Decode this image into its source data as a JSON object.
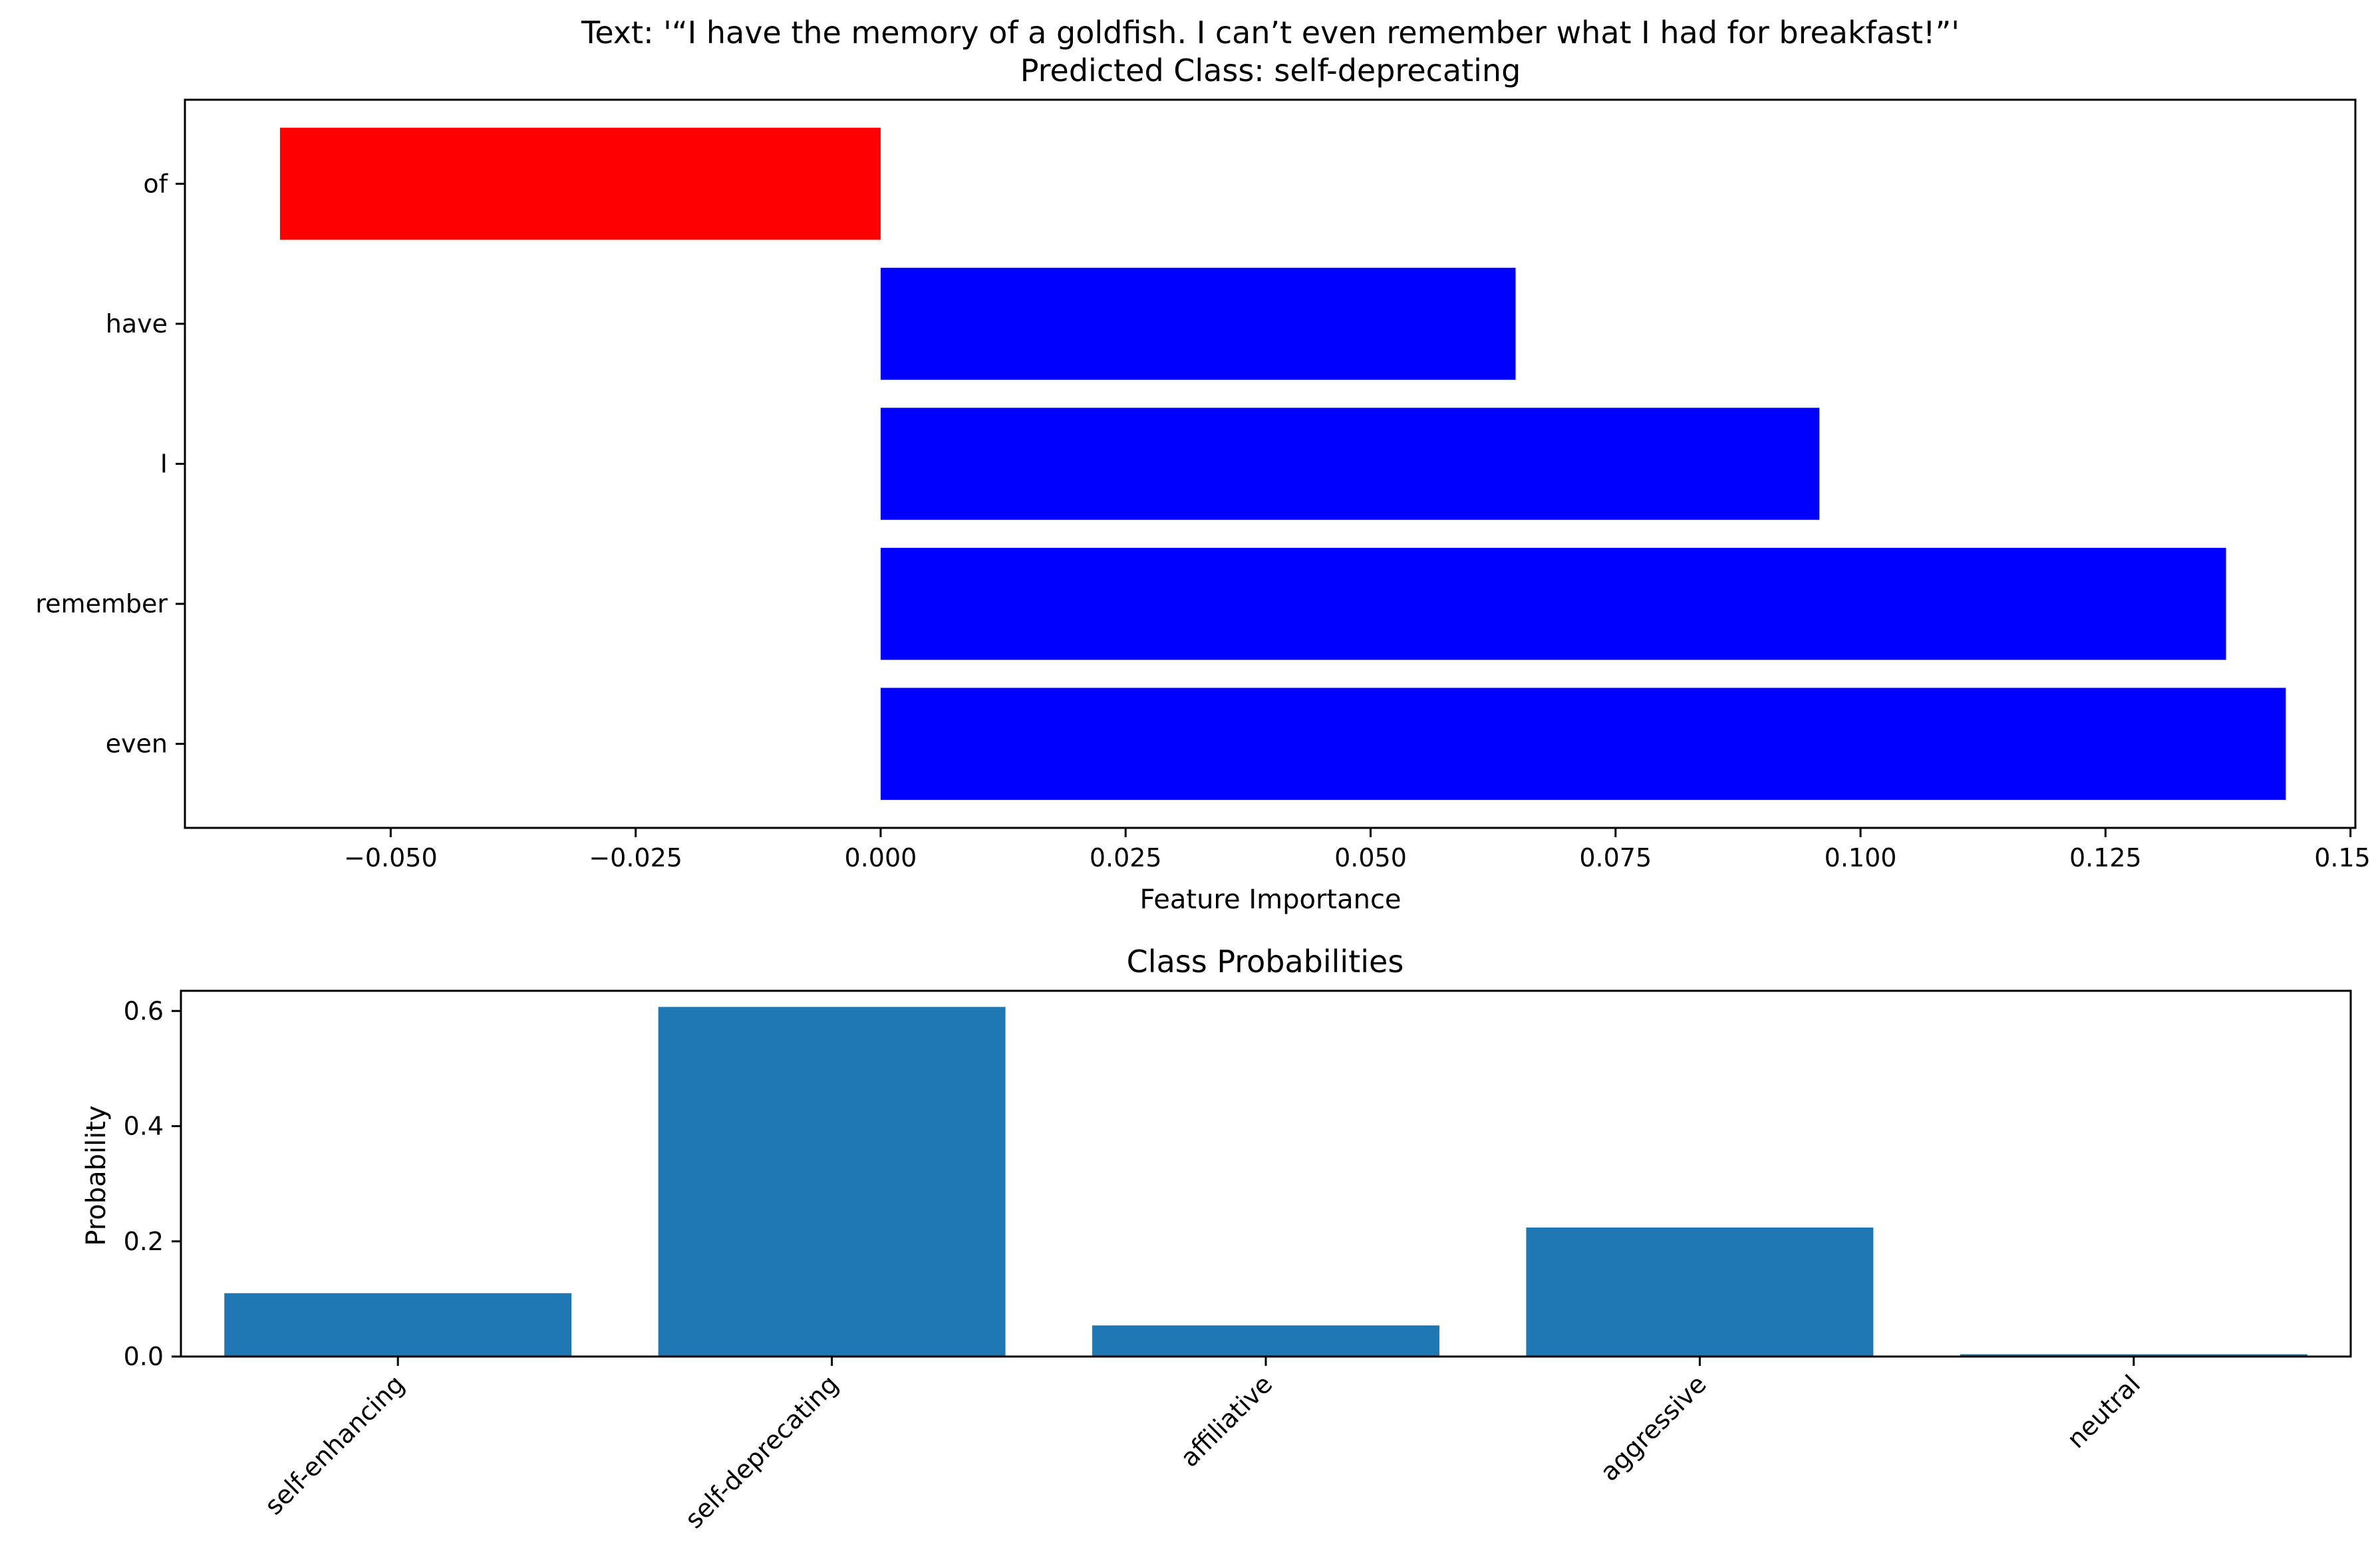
{
  "chart_data": [
    {
      "type": "bar",
      "orientation": "horizontal",
      "title_line1": "Text: '“I have the memory of a goldfish. I can’t even remember what I had for breakfast!”'",
      "title_line2": "Predicted Class: self-deprecating",
      "xlabel": "Feature Importance",
      "ylabel": "",
      "xlim": [
        -0.071,
        0.1505
      ],
      "xticks": [
        -0.05,
        -0.025,
        0.0,
        0.025,
        0.05,
        0.075,
        0.1,
        0.125,
        0.15
      ],
      "xtick_labels": [
        "−0.050",
        "−0.025",
        "0.000",
        "0.025",
        "0.050",
        "0.075",
        "0.100",
        "0.125",
        "0.150"
      ],
      "categories": [
        "of",
        "have",
        "I",
        "remember",
        "even"
      ],
      "values": [
        -0.0613,
        0.0648,
        0.0958,
        0.1373,
        0.1434
      ],
      "colors": [
        "#ff0000",
        "#0000ff",
        "#0000ff",
        "#0000ff",
        "#0000ff"
      ],
      "grid": false
    },
    {
      "type": "bar",
      "title": "Class Probabilities",
      "xlabel": "",
      "ylabel": "Probability",
      "ylim": [
        0,
        0.635
      ],
      "yticks": [
        0.0,
        0.2,
        0.4,
        0.6
      ],
      "ytick_labels": [
        "0.0",
        "0.2",
        "0.4",
        "0.6"
      ],
      "categories": [
        "self-enhancing",
        "self-deprecating",
        "affiliative",
        "aggressive",
        "neutral"
      ],
      "values": [
        0.11,
        0.607,
        0.054,
        0.224,
        0.004
      ],
      "color": "#1f77b4",
      "grid": false
    }
  ]
}
